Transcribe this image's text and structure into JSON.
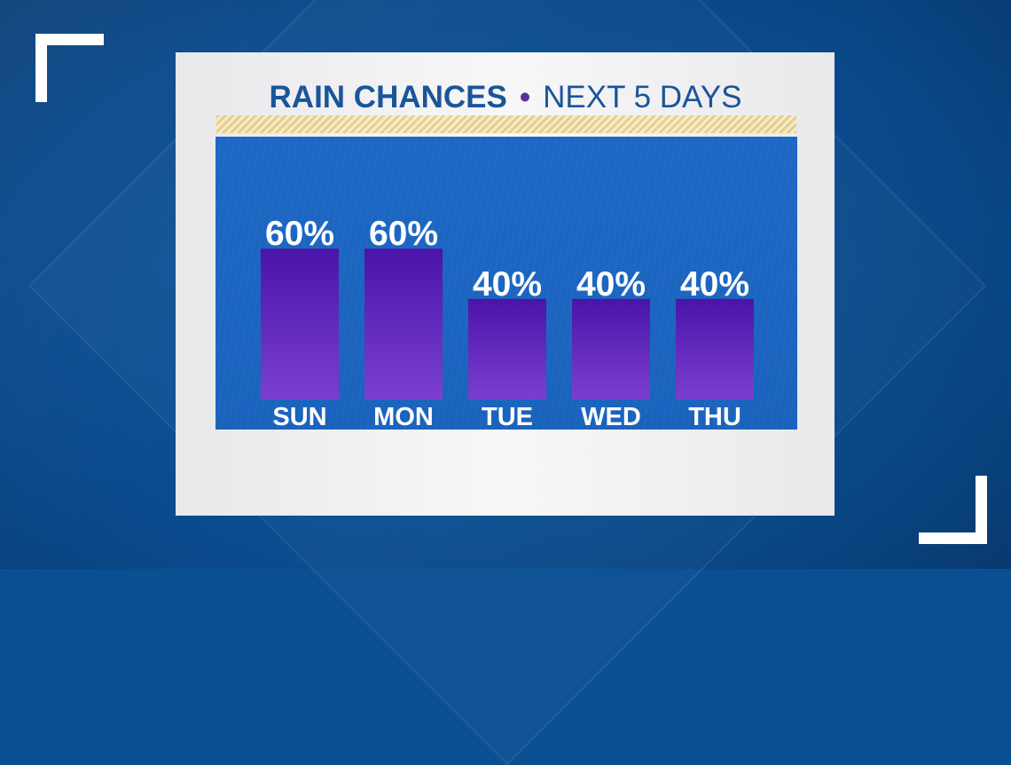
{
  "title": {
    "main": "RAIN CHANCES",
    "separator": "•",
    "sub": "NEXT 5 DAYS"
  },
  "colors": {
    "background": "#0b4f93",
    "card": "#f2f2f4",
    "panel": "#1d68c4",
    "bar_top": "#4a14a8",
    "bar_bottom": "#7a3fd0",
    "title_text": "#1a5599",
    "title_dot": "#5b2d9e",
    "stripe": "#e7cf8a"
  },
  "chart_data": {
    "type": "bar",
    "title": "RAIN CHANCES • NEXT 5 DAYS",
    "categories": [
      "SUN",
      "MON",
      "TUE",
      "WED",
      "THU"
    ],
    "values": [
      60,
      60,
      40,
      40,
      40
    ],
    "value_labels": [
      "60%",
      "60%",
      "40%",
      "40%",
      "40%"
    ],
    "ylim": [
      0,
      100
    ],
    "grid": false
  }
}
